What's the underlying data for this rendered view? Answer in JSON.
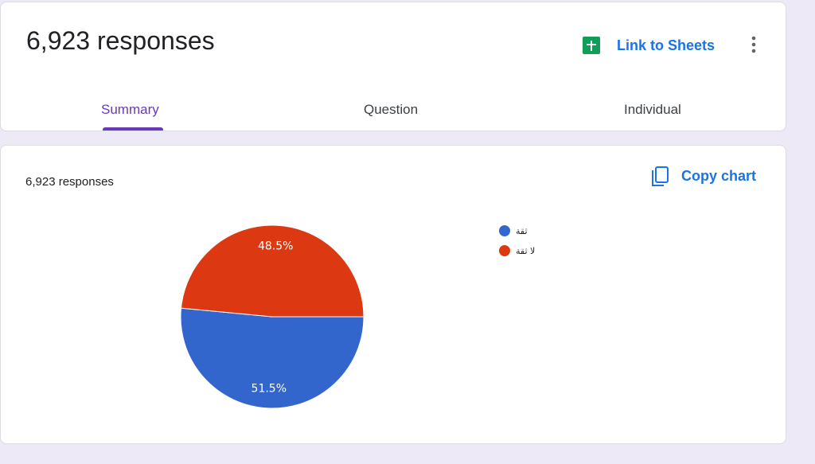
{
  "header": {
    "title": "6,923 responses",
    "link": "Link to Sheets"
  },
  "tabs": [
    "Summary",
    "Question",
    "Individual"
  ],
  "card": {
    "responses": "6,923 responses",
    "copy": "Copy chart"
  },
  "chart_data": {
    "type": "pie",
    "categories": [
      "ثقة",
      "لا ثقة"
    ],
    "values": [
      51.5,
      48.5
    ],
    "value_labels": [
      "51.5%",
      "48.5%"
    ],
    "colors": [
      "#3366cc",
      "#dc3912"
    ]
  }
}
